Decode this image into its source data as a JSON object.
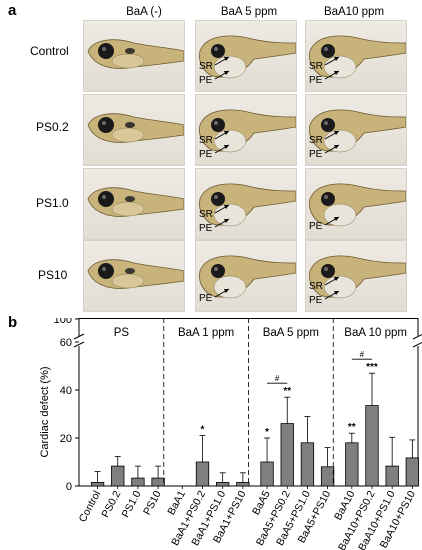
{
  "panel_a": {
    "letter": "a",
    "columns": [
      "BaA (-)",
      "BaA 5 ppm",
      "BaA10 ppm"
    ],
    "rows": [
      {
        "label": "Control",
        "cells": [
          {
            "annotations": []
          },
          {
            "annotations": [
              "SR",
              "PE"
            ]
          },
          {
            "annotations": [
              "SR",
              "PE"
            ]
          }
        ]
      },
      {
        "label": "PS0.2",
        "cells": [
          {
            "annotations": []
          },
          {
            "annotations": [
              "SR",
              "PE"
            ]
          },
          {
            "annotations": [
              "SR",
              "PE"
            ]
          }
        ]
      },
      {
        "label": "PS1.0",
        "cells": [
          {
            "annotations": []
          },
          {
            "annotations": [
              "SR",
              "PE"
            ]
          },
          {
            "annotations": [
              "PE"
            ]
          }
        ]
      },
      {
        "label": "PS10",
        "cells": [
          {
            "annotations": []
          },
          {
            "annotations": [
              "PE"
            ]
          },
          {
            "annotations": [
              "SR",
              "PE"
            ]
          }
        ]
      }
    ]
  },
  "panel_b": {
    "letter": "b"
  },
  "chart_data": {
    "type": "bar",
    "title": "",
    "xlabel": "",
    "ylabel": "Cardiac defect (%)",
    "ylim": [
      0,
      100
    ],
    "axis_break": [
      65,
      95
    ],
    "y_ticks": [
      0,
      20,
      40,
      60,
      100
    ],
    "groups": [
      {
        "label": "PS",
        "categories": [
          "Control",
          "PS0.2",
          "PS1.0",
          "PS10"
        ],
        "values": [
          1.5,
          8.3,
          3.3,
          3.3
        ],
        "errors": [
          4.5,
          4.0,
          5.0,
          5.0
        ],
        "marks": [
          "",
          "",
          "",
          ""
        ]
      },
      {
        "label": "BaA 1 ppm",
        "categories": [
          "BaA1",
          "BaA1+PS0.2",
          "BaA1+PS1.0",
          "BaA1+PS10"
        ],
        "values": [
          0,
          10.0,
          1.5,
          1.5
        ],
        "errors": [
          0,
          11.0,
          4.0,
          4.0
        ],
        "marks": [
          "",
          "*",
          "",
          ""
        ]
      },
      {
        "label": "BaA 5 ppm",
        "categories": [
          "BaA5",
          "BaA5+PS0.2",
          "BaA5+PS1.0",
          "BaA5+PS10"
        ],
        "values": [
          10.0,
          26.0,
          18.0,
          8.0
        ],
        "errors": [
          10.0,
          11.0,
          11.0,
          8.0
        ],
        "marks": [
          "*",
          "**",
          "",
          ""
        ]
      },
      {
        "label": "BaA 10 ppm",
        "categories": [
          "BaA10",
          "BaA10+PS0.2",
          "BaA10+PS1.0",
          "BaA10+PS10"
        ],
        "values": [
          18.0,
          33.5,
          8.3,
          11.7
        ],
        "errors": [
          4.0,
          13.5,
          12.0,
          7.5
        ],
        "marks": [
          "**",
          "***",
          "",
          ""
        ]
      }
    ],
    "brackets": [
      {
        "group": 2,
        "from": 0,
        "to": 1,
        "mark": "#"
      },
      {
        "group": 3,
        "from": 0,
        "to": 1,
        "mark": "#"
      }
    ],
    "bar_color": "#7f7f7f"
  }
}
